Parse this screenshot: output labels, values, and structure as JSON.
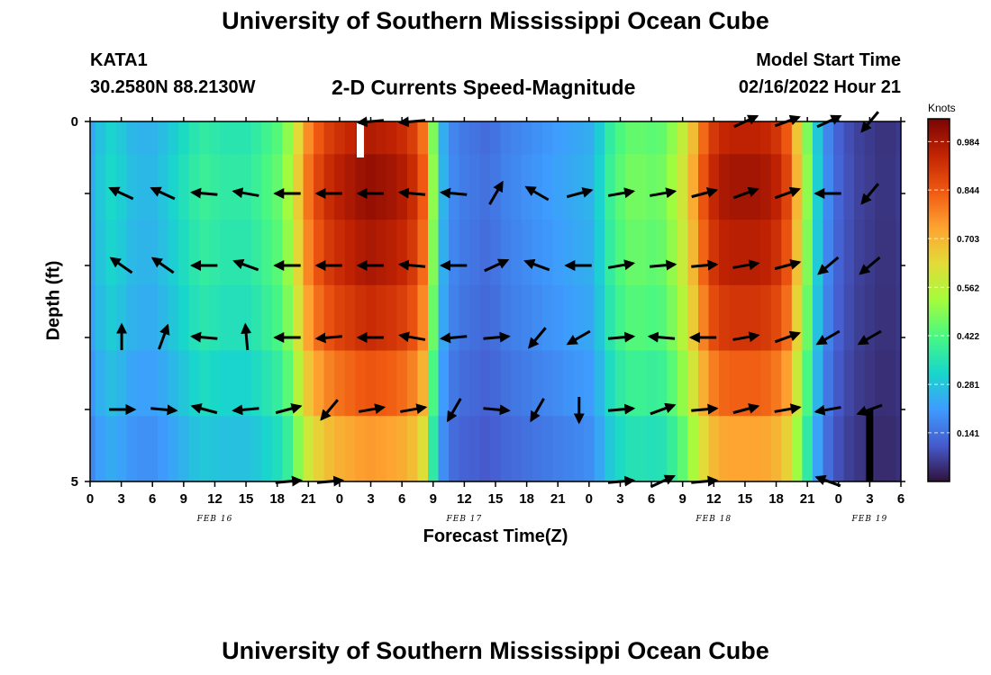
{
  "header": {
    "title": "University of Southern Mississippi Ocean Cube",
    "station": "KATA1",
    "coords": "30.2580N  88.2130W",
    "subtitle": "2-D Currents Speed-Magnitude",
    "model_start_label": "Model Start Time",
    "model_start_value": "02/16/2022 Hour 21"
  },
  "footer": {
    "title": "University of Southern Mississippi Ocean Cube"
  },
  "chart_data": {
    "type": "heatmap",
    "title": "2-D Currents Speed-Magnitude",
    "xlabel": "Forecast Time(Z)",
    "ylabel": "Depth (ft)",
    "x_unit": "hours since FEB 16 00Z",
    "x_range": [
      0,
      78
    ],
    "y_range": [
      0,
      5
    ],
    "y_ticks": [
      "0",
      "5"
    ],
    "x_tick_labels": [
      "0",
      "3",
      "6",
      "9",
      "12",
      "15",
      "18",
      "21",
      "0",
      "3",
      "6",
      "9",
      "12",
      "15",
      "18",
      "21",
      "0",
      "3",
      "6",
      "9",
      "12",
      "15",
      "18",
      "21",
      "0",
      "3",
      "6"
    ],
    "date_labels": [
      {
        "label": "FEB 16",
        "x": 12
      },
      {
        "label": "FEB 17",
        "x": 36
      },
      {
        "label": "FEB 18",
        "x": 60
      },
      {
        "label": "FEB 19",
        "x": 75
      }
    ],
    "colorbar": {
      "unit": "Knots",
      "min": 0.0,
      "max": 1.05,
      "tick_labels": [
        "0.141",
        "0.281",
        "0.422",
        "0.562",
        "0.703",
        "0.844",
        "0.984"
      ],
      "tick_values": [
        0.141,
        0.281,
        0.422,
        0.562,
        0.703,
        0.844,
        0.984
      ]
    },
    "depth_levels": [
      0,
      1,
      2,
      3,
      4,
      5
    ],
    "speed_profile": {
      "hours": [
        0,
        1,
        2,
        3,
        4,
        5,
        6,
        7,
        8,
        9,
        10,
        11,
        12,
        13,
        14,
        15,
        16,
        17,
        18,
        19,
        20,
        21,
        22,
        23,
        24,
        25,
        26,
        27,
        28,
        29,
        30,
        31,
        32,
        33,
        34,
        35,
        36,
        37,
        38,
        39,
        40,
        41,
        42,
        43,
        44,
        45,
        46,
        47,
        48,
        49,
        50,
        51,
        52,
        53,
        54,
        55,
        56,
        57,
        58,
        59,
        60,
        61,
        62,
        63,
        64,
        65,
        66,
        67,
        68,
        69,
        70,
        71,
        72,
        73,
        74,
        75,
        76,
        77,
        78
      ],
      "speeds": [
        0.24,
        0.29,
        0.32,
        0.3,
        0.27,
        0.26,
        0.26,
        0.28,
        0.31,
        0.34,
        0.37,
        0.39,
        0.38,
        0.37,
        0.37,
        0.37,
        0.39,
        0.42,
        0.45,
        0.52,
        0.66,
        0.8,
        0.88,
        0.93,
        0.96,
        0.98,
        1.0,
        1.01,
        1.0,
        0.99,
        0.97,
        0.93,
        0.84,
        0.5,
        0.25,
        0.18,
        0.16,
        0.15,
        0.14,
        0.15,
        0.17,
        0.18,
        0.19,
        0.2,
        0.21,
        0.22,
        0.23,
        0.24,
        0.25,
        0.31,
        0.39,
        0.44,
        0.47,
        0.47,
        0.46,
        0.47,
        0.52,
        0.6,
        0.72,
        0.85,
        0.94,
        0.98,
        0.99,
        0.99,
        0.99,
        0.98,
        0.95,
        0.88,
        0.7,
        0.5,
        0.3,
        0.18,
        0.12,
        0.09,
        0.07,
        0.06,
        0.05,
        0.05,
        0.06
      ]
    },
    "depth_factor": [
      0.96,
      1.0,
      0.97,
      0.92,
      0.84,
      0.74
    ],
    "missing_cells": [
      {
        "hour": 26,
        "depth_from": 0,
        "depth_to": 0.5
      },
      {
        "hour": 75,
        "depth_from": 4,
        "depth_to": 5
      }
    ],
    "arrow_hours": [
      2,
      6,
      10,
      14,
      18,
      22,
      26,
      30,
      34,
      38,
      42,
      46,
      50,
      54,
      58,
      62,
      66,
      70,
      74
    ],
    "arrow_depths": [
      0,
      1,
      2,
      3,
      4,
      5
    ],
    "arrow_directions_deg": [
      [
        null,
        null,
        null,
        null,
        null,
        null,
        185,
        185,
        null,
        null,
        null,
        null,
        null,
        null,
        null,
        25,
        20,
        25,
        230
      ],
      [
        155,
        155,
        175,
        170,
        180,
        180,
        180,
        175,
        175,
        60,
        150,
        15,
        10,
        10,
        15,
        20,
        20,
        180,
        230
      ],
      [
        145,
        145,
        180,
        160,
        180,
        180,
        180,
        175,
        180,
        25,
        160,
        180,
        10,
        5,
        5,
        10,
        15,
        220,
        220
      ],
      [
        90,
        70,
        175,
        95,
        180,
        185,
        180,
        170,
        185,
        5,
        230,
        210,
        5,
        175,
        180,
        10,
        20,
        210,
        210
      ],
      [
        0,
        355,
        165,
        185,
        15,
        230,
        10,
        10,
        240,
        355,
        240,
        270,
        5,
        20,
        5,
        15,
        10,
        190,
        200
      ],
      [
        null,
        null,
        null,
        null,
        5,
        5,
        null,
        null,
        null,
        null,
        null,
        null,
        5,
        25,
        5,
        null,
        null,
        160,
        null
      ]
    ]
  }
}
